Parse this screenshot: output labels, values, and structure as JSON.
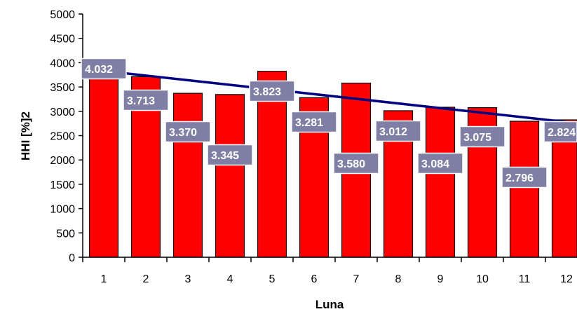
{
  "chart_data": {
    "type": "bar",
    "title": "",
    "xlabel": "Luna",
    "ylabel": "HHI [%]2",
    "categories": [
      "1",
      "2",
      "3",
      "4",
      "5",
      "6",
      "7",
      "8",
      "9",
      "10",
      "11",
      "12"
    ],
    "values": [
      4032,
      3713,
      3370,
      3345,
      3823,
      3281,
      3580,
      3012,
      3084,
      3075,
      2796,
      2824
    ],
    "data_labels": [
      "4.032",
      "3.713",
      "3.370",
      "3.345",
      "3.823",
      "3.281",
      "3.580",
      "3.012",
      "3.084",
      "3.075",
      "2.796",
      "2.824"
    ],
    "y_ticks": [
      0,
      500,
      1000,
      1500,
      2000,
      2500,
      3000,
      3500,
      4000,
      4500,
      5000
    ],
    "ylim": [
      0,
      5000
    ],
    "trendline": {
      "type": "linear",
      "start_value": 3830,
      "end_value": 2780
    },
    "grid": false,
    "legend": "none",
    "colors": {
      "bar_fill": "#ff0000",
      "bar_stroke": "#000000",
      "trendline": "#000080",
      "label_fill": "#7f7fa6",
      "label_stroke": "#ffffff",
      "label_text": "#ffffff"
    }
  }
}
